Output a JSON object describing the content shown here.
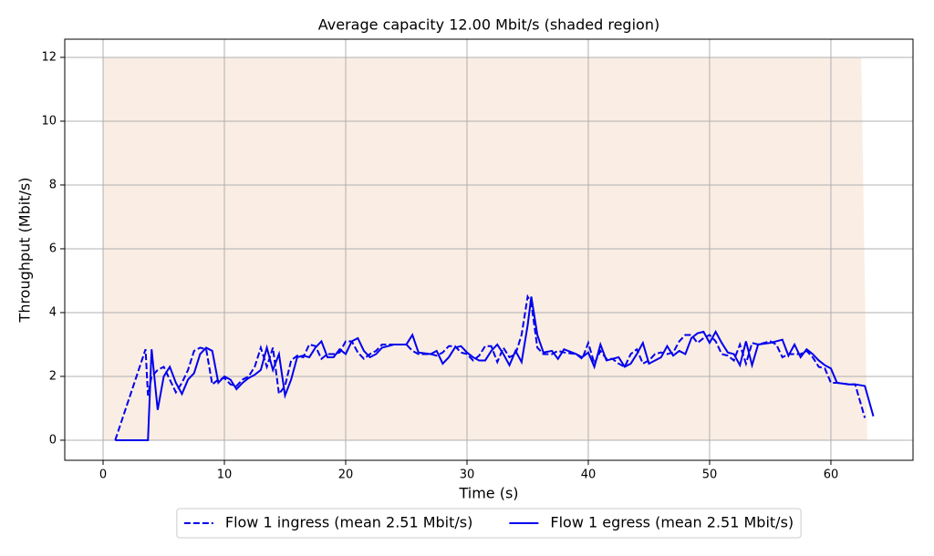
{
  "chart_data": {
    "type": "line",
    "title": "Average capacity 12.00 Mbit/s (shaded region)",
    "x_label": "Time (s)",
    "y_label": "Throughput (Mbit/s)",
    "xlim": [
      -3.16,
      66.77
    ],
    "ylim": [
      -0.63,
      12.57
    ],
    "xticks": [
      0,
      10,
      20,
      30,
      40,
      50,
      60
    ],
    "yticks": [
      0,
      2,
      4,
      6,
      8,
      10,
      12
    ],
    "grid": true,
    "legend": "bottom",
    "capacity": {
      "x": [
        0,
        62.5,
        63
      ],
      "values": [
        12,
        12,
        0
      ],
      "color": "#faede3"
    },
    "x": [
      1,
      3.5,
      3.7,
      4,
      4.5,
      5,
      5.5,
      6,
      6.5,
      7,
      7.5,
      8,
      8.5,
      9,
      9.5,
      10,
      10.5,
      11,
      11.5,
      12,
      12.5,
      13,
      13.5,
      14,
      14.5,
      15,
      15.5,
      16,
      16.5,
      17,
      17.5,
      18,
      18.5,
      19,
      19.5,
      20,
      20.5,
      21,
      21.5,
      22,
      22.5,
      23,
      24,
      25,
      25.5,
      26,
      27,
      27.5,
      28,
      28.5,
      29,
      29.5,
      30,
      30.5,
      31,
      31.5,
      32,
      32.5,
      33,
      33.5,
      34,
      34.5,
      35,
      35.3,
      35.8,
      36.3,
      37,
      37.5,
      38,
      39,
      39.5,
      40,
      40.5,
      41,
      41.5,
      42,
      42.5,
      43,
      43.5,
      44,
      44.5,
      45,
      45.5,
      46,
      46.5,
      47,
      47.5,
      48,
      48.5,
      49,
      49.5,
      50,
      50.5,
      51,
      51.5,
      52,
      52.5,
      53,
      53.5,
      54,
      55,
      55.5,
      56,
      56.5,
      57,
      57.5,
      58,
      58.5,
      59,
      59.5,
      60,
      60.5,
      61.5,
      62,
      62.8,
      63.5
    ],
    "series": [
      {
        "name": "Flow 1 ingress (mean 2.51 Mbit/s)",
        "color": "#0000ee",
        "linestyle": "dashed",
        "values": [
          0,
          2.85,
          1.4,
          2.0,
          2.2,
          2.3,
          1.9,
          1.5,
          1.8,
          2.2,
          2.8,
          2.9,
          2.85,
          1.75,
          1.9,
          1.95,
          1.75,
          1.7,
          1.9,
          2.0,
          2.3,
          2.9,
          2.3,
          2.9,
          1.45,
          1.7,
          2.5,
          2.65,
          2.6,
          3.0,
          2.95,
          2.55,
          2.7,
          2.7,
          2.75,
          3.1,
          3.1,
          2.75,
          2.55,
          2.7,
          2.8,
          3.0,
          3.0,
          3.0,
          2.8,
          2.7,
          2.7,
          2.65,
          2.75,
          2.95,
          2.95,
          2.75,
          2.7,
          2.5,
          2.65,
          2.95,
          2.95,
          2.45,
          2.9,
          2.6,
          2.7,
          3.3,
          4.5,
          4.3,
          2.9,
          2.7,
          2.7,
          2.8,
          2.75,
          2.7,
          2.55,
          3.05,
          2.4,
          2.8,
          2.55,
          2.55,
          2.4,
          2.3,
          2.7,
          2.85,
          2.4,
          2.5,
          2.7,
          2.75,
          2.7,
          2.75,
          3.1,
          3.3,
          3.3,
          3.05,
          3.2,
          3.3,
          3.1,
          2.7,
          2.65,
          2.5,
          3.0,
          2.4,
          3.05,
          3.0,
          3.1,
          3.0,
          2.6,
          2.7,
          2.7,
          2.7,
          2.8,
          2.6,
          2.3,
          2.25,
          1.8,
          1.8,
          1.75,
          1.75,
          0.7,
          null
        ]
      },
      {
        "name": "Flow 1 egress (mean 2.51 Mbit/s)",
        "color": "#0000ee",
        "linestyle": "solid",
        "values": [
          0,
          0,
          0,
          2.85,
          0.95,
          2.0,
          2.3,
          1.8,
          1.45,
          1.9,
          2.1,
          2.7,
          2.9,
          2.8,
          1.8,
          2.0,
          1.9,
          1.6,
          1.8,
          1.95,
          2.05,
          2.2,
          2.9,
          2.2,
          2.7,
          1.4,
          1.9,
          2.6,
          2.65,
          2.6,
          2.9,
          3.1,
          2.6,
          2.6,
          2.85,
          2.7,
          3.1,
          3.2,
          2.8,
          2.6,
          2.7,
          2.9,
          3.0,
          3.0,
          3.3,
          2.75,
          2.7,
          2.8,
          2.4,
          2.6,
          2.9,
          2.95,
          2.75,
          2.6,
          2.5,
          2.5,
          2.8,
          3.0,
          2.7,
          2.35,
          2.8,
          2.45,
          3.6,
          4.5,
          3.3,
          2.75,
          2.8,
          2.55,
          2.85,
          2.7,
          2.6,
          2.75,
          2.3,
          3.0,
          2.5,
          2.55,
          2.6,
          2.3,
          2.4,
          2.7,
          3.05,
          2.4,
          2.5,
          2.6,
          2.95,
          2.65,
          2.8,
          2.7,
          3.2,
          3.35,
          3.4,
          3.05,
          3.4,
          3.05,
          2.75,
          2.7,
          2.35,
          3.1,
          2.35,
          3.0,
          3.05,
          3.1,
          3.15,
          2.65,
          3.0,
          2.6,
          2.85,
          2.7,
          2.5,
          2.35,
          2.25,
          1.8,
          1.75,
          1.75,
          1.7,
          0.75
        ]
      }
    ]
  }
}
